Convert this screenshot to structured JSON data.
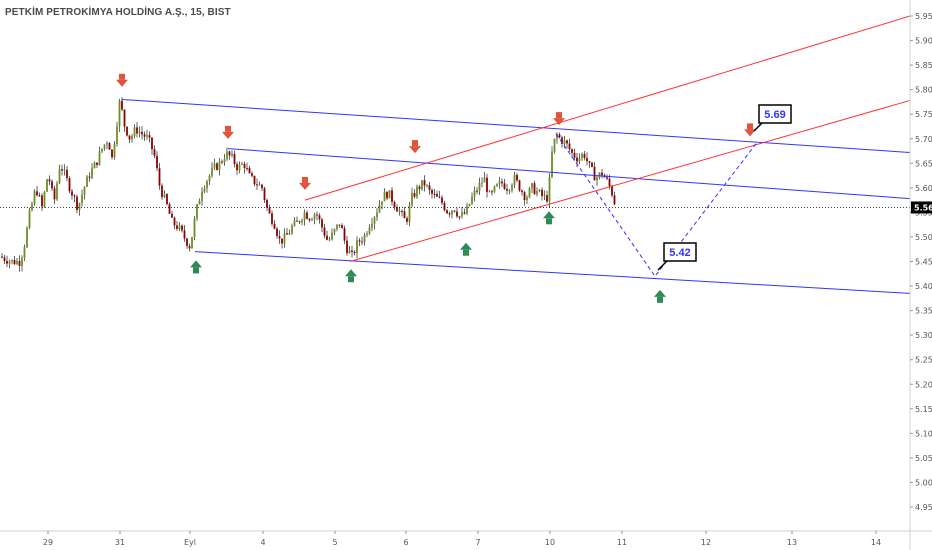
{
  "title": "PETKİM PETROKİMYA HOLDİNG A.Ş., 15, BIST",
  "colors": {
    "up": "#6b8e23",
    "down": "#8b0000",
    "wick": "#222222",
    "blue_line": "#3333ff",
    "red_line": "#ff3333",
    "arrow_down": "#e2533d",
    "arrow_up": "#2e8b57",
    "price_label_bg": "#000000"
  },
  "chart_data": {
    "type": "candlestick",
    "symbol": "PETKİM PETROKİMYA HOLDİNG A.Ş.",
    "interval": "15",
    "exchange": "BIST",
    "yrange": [
      4.91,
      5.97
    ],
    "y_ticks": [
      "5.95",
      "5.90",
      "5.85",
      "5.80",
      "5.75",
      "5.70",
      "5.65",
      "5.60",
      "5.55",
      "5.50",
      "5.45",
      "5.40",
      "5.35",
      "5.30",
      "5.25",
      "5.20",
      "5.15",
      "5.10",
      "5.05",
      "5.00",
      "4.95"
    ],
    "x_ticks": [
      "29",
      "31",
      "Eyl",
      "4",
      "5",
      "6",
      "7",
      "10",
      "11",
      "12",
      "13",
      "14"
    ],
    "last_price": "5.56",
    "target_up": "5.69",
    "target_down": "5.42",
    "close_path": [
      [
        0,
        5.46
      ],
      [
        12,
        5.45
      ],
      [
        20,
        5.45
      ],
      [
        24,
        5.48
      ],
      [
        30,
        5.55
      ],
      [
        36,
        5.6
      ],
      [
        42,
        5.56
      ],
      [
        48,
        5.63
      ],
      [
        54,
        5.57
      ],
      [
        60,
        5.65
      ],
      [
        66,
        5.62
      ],
      [
        72,
        5.59
      ],
      [
        78,
        5.56
      ],
      [
        84,
        5.6
      ],
      [
        90,
        5.63
      ],
      [
        96,
        5.65
      ],
      [
        102,
        5.68
      ],
      [
        108,
        5.7
      ],
      [
        112,
        5.66
      ],
      [
        116,
        5.72
      ],
      [
        120,
        5.78
      ],
      [
        124,
        5.73
      ],
      [
        130,
        5.7
      ],
      [
        136,
        5.72
      ],
      [
        142,
        5.71
      ],
      [
        148,
        5.7
      ],
      [
        154,
        5.67
      ],
      [
        160,
        5.6
      ],
      [
        166,
        5.57
      ],
      [
        172,
        5.53
      ],
      [
        178,
        5.52
      ],
      [
        184,
        5.5
      ],
      [
        190,
        5.48
      ],
      [
        196,
        5.55
      ],
      [
        202,
        5.6
      ],
      [
        208,
        5.62
      ],
      [
        214,
        5.64
      ],
      [
        220,
        5.65
      ],
      [
        226,
        5.67
      ],
      [
        232,
        5.66
      ],
      [
        238,
        5.64
      ],
      [
        244,
        5.65
      ],
      [
        250,
        5.62
      ],
      [
        256,
        5.61
      ],
      [
        262,
        5.6
      ],
      [
        268,
        5.55
      ],
      [
        274,
        5.53
      ],
      [
        280,
        5.49
      ],
      [
        286,
        5.5
      ],
      [
        292,
        5.52
      ],
      [
        298,
        5.53
      ],
      [
        304,
        5.55
      ],
      [
        310,
        5.54
      ],
      [
        316,
        5.55
      ],
      [
        322,
        5.52
      ],
      [
        328,
        5.49
      ],
      [
        334,
        5.51
      ],
      [
        340,
        5.53
      ],
      [
        346,
        5.48
      ],
      [
        352,
        5.46
      ],
      [
        358,
        5.49
      ],
      [
        364,
        5.5
      ],
      [
        370,
        5.53
      ],
      [
        376,
        5.55
      ],
      [
        382,
        5.58
      ],
      [
        388,
        5.59
      ],
      [
        394,
        5.57
      ],
      [
        400,
        5.55
      ],
      [
        406,
        5.53
      ],
      [
        412,
        5.58
      ],
      [
        418,
        5.6
      ],
      [
        424,
        5.61
      ],
      [
        430,
        5.59
      ],
      [
        436,
        5.58
      ],
      [
        442,
        5.57
      ],
      [
        448,
        5.55
      ],
      [
        454,
        5.56
      ],
      [
        460,
        5.54
      ],
      [
        466,
        5.55
      ],
      [
        472,
        5.58
      ],
      [
        478,
        5.6
      ],
      [
        484,
        5.62
      ],
      [
        490,
        5.58
      ],
      [
        496,
        5.6
      ],
      [
        502,
        5.61
      ],
      [
        508,
        5.6
      ],
      [
        514,
        5.62
      ],
      [
        520,
        5.6
      ],
      [
        526,
        5.58
      ],
      [
        532,
        5.6
      ],
      [
        538,
        5.59
      ],
      [
        544,
        5.58
      ],
      [
        548,
        5.58
      ],
      [
        552,
        5.67
      ],
      [
        556,
        5.71
      ],
      [
        560,
        5.7
      ],
      [
        566,
        5.69
      ],
      [
        572,
        5.67
      ],
      [
        578,
        5.66
      ],
      [
        584,
        5.67
      ],
      [
        590,
        5.64
      ],
      [
        596,
        5.62
      ],
      [
        602,
        5.63
      ],
      [
        608,
        5.61
      ],
      [
        612,
        5.59
      ],
      [
        616,
        5.56
      ]
    ],
    "lines": [
      {
        "color": "blue",
        "from": [
          122,
          5.78
        ],
        "to": [
          910,
          5.672
        ]
      },
      {
        "color": "blue",
        "from": [
          228,
          5.68
        ],
        "to": [
          910,
          5.578
        ]
      },
      {
        "color": "blue",
        "from": [
          195,
          5.47
        ],
        "to": [
          910,
          5.385
        ]
      },
      {
        "color": "red",
        "from": [
          305,
          5.575
        ],
        "to": [
          910,
          5.95
        ]
      },
      {
        "color": "red",
        "from": [
          350,
          5.45
        ],
        "to": [
          910,
          5.778
        ]
      }
    ],
    "projection": [
      [
        556,
        5.71
      ],
      [
        655,
        5.42
      ],
      [
        756,
        5.69
      ]
    ],
    "markers_down": [
      [
        122,
        5.818
      ],
      [
        228,
        5.712
      ],
      [
        305,
        5.608
      ],
      [
        415,
        5.683
      ],
      [
        559,
        5.74
      ],
      [
        750,
        5.717
      ]
    ],
    "markers_up": [
      [
        196,
        5.44
      ],
      [
        351,
        5.422
      ],
      [
        466,
        5.476
      ],
      [
        549,
        5.54
      ],
      [
        660,
        5.38
      ]
    ]
  }
}
